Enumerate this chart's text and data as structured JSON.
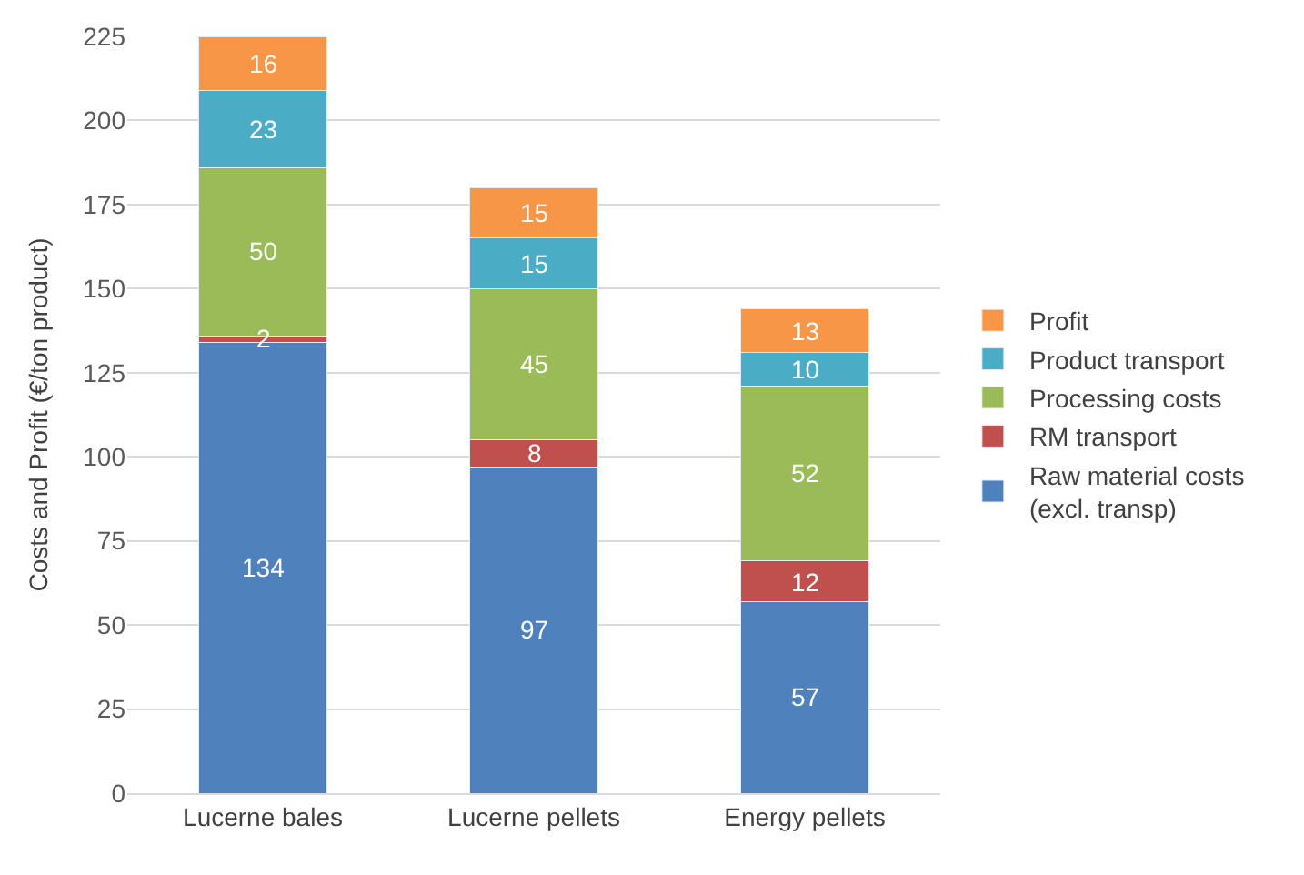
{
  "chart_data": {
    "type": "bar",
    "stacked": true,
    "ylabel": "Costs and Profit (€/ton product)",
    "categories": [
      "Lucerne bales",
      "Lucerne pellets",
      "Energy pellets"
    ],
    "series": [
      {
        "name": "Raw material costs\n(excl. transp)",
        "color": "#4f81bd",
        "values": [
          134,
          97,
          57
        ]
      },
      {
        "name": "RM transport",
        "color": "#c0504d",
        "values": [
          2,
          8,
          12
        ]
      },
      {
        "name": "Processing costs",
        "color": "#9bbb59",
        "values": [
          50,
          45,
          52
        ]
      },
      {
        "name": "Product transport",
        "color": "#4bacc6",
        "values": [
          23,
          15,
          10
        ]
      },
      {
        "name": "Profit",
        "color": "#f79646",
        "values": [
          16,
          15,
          13
        ]
      }
    ],
    "ylim": [
      0,
      225
    ],
    "yticks": [
      0,
      25,
      50,
      75,
      100,
      125,
      150,
      175,
      200,
      225
    ],
    "grid": "y",
    "legend": "right",
    "data_labels": true
  }
}
